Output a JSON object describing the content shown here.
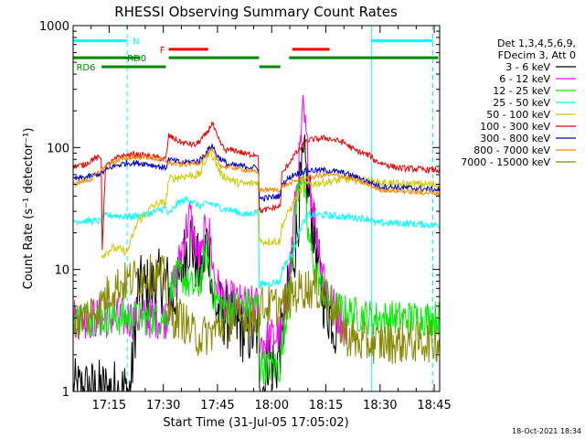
{
  "chart_data": {
    "type": "line",
    "title": "RHESSI Observing Summary Count Rates",
    "xlabel": "Start Time (31-Jul-05 17:05:02)",
    "ylabel": "Count Rate (s⁻¹ detector⁻¹)",
    "xlim": [
      1025.03,
      1126.5
    ],
    "ylim": [
      1,
      1000
    ],
    "yscale": "log",
    "x_unit": "minutes after 00:00 UT",
    "x_ticks": [
      {
        "value": 1035,
        "label": "17:15"
      },
      {
        "value": 1050,
        "label": "17:30"
      },
      {
        "value": 1065,
        "label": "17:45"
      },
      {
        "value": 1080,
        "label": "18:00"
      },
      {
        "value": 1095,
        "label": "18:15"
      },
      {
        "value": 1110,
        "label": "18:30"
      },
      {
        "value": 1125,
        "label": "18:45"
      }
    ],
    "y_ticks": [
      {
        "value": 1,
        "label": "1"
      },
      {
        "value": 10,
        "label": "10"
      },
      {
        "value": 100,
        "label": "100"
      },
      {
        "value": 1000,
        "label": "1000"
      }
    ],
    "legend_header": [
      "Det 1,3,4,5,6,9,",
      "FDecim 3, Att 0"
    ],
    "legend_placement": "right-outside",
    "flags": [
      {
        "label": "N",
        "color": "#00ffff",
        "segments": [
          [
            1025.03,
            1040
          ],
          [
            1107.6,
            1124.6
          ]
        ],
        "level": 750
      },
      {
        "label": "F",
        "color": "#ee0000",
        "segments": [
          [
            1051.5,
            1062.4
          ],
          [
            1085.7,
            1096.0
          ]
        ],
        "level": 640
      },
      {
        "label": "RD0",
        "color": "#008800",
        "segments": [
          [
            1025.03,
            1043.6
          ],
          [
            1051.5,
            1076.5
          ],
          [
            1084.8,
            1126.1
          ]
        ],
        "level": 545
      },
      {
        "label": "RD6",
        "color": "#008800",
        "segments": [
          [
            1032.9,
            1050.7
          ],
          [
            1076.6,
            1082.4
          ]
        ],
        "level": 460
      }
    ],
    "vlines": [
      {
        "x": 1025.03,
        "style": "solid",
        "color": "#00ffff"
      },
      {
        "x": 1040.0,
        "style": "dashed",
        "color": "#00ffff"
      },
      {
        "x": 1107.6,
        "style": "solid",
        "color": "#00ffff"
      },
      {
        "x": 1124.6,
        "style": "dashed",
        "color": "#00ffff"
      }
    ],
    "series": [
      {
        "name": "3 - 6 keV",
        "color": "#000000",
        "noise": 0.55,
        "points": [
          [
            1025.03,
            1
          ],
          [
            1040.9,
            1
          ],
          [
            1041.1,
            1.2
          ],
          [
            1043,
            7
          ],
          [
            1046,
            7
          ],
          [
            1049,
            8
          ],
          [
            1050.7,
            8
          ],
          [
            1051.5,
            7
          ],
          [
            1052.5,
            5
          ],
          [
            1054,
            7
          ],
          [
            1056,
            14
          ],
          [
            1057.5,
            18
          ],
          [
            1059,
            12
          ],
          [
            1060.5,
            9
          ],
          [
            1062,
            17
          ],
          [
            1063,
            12
          ],
          [
            1064,
            5
          ],
          [
            1066,
            4.5
          ],
          [
            1068,
            4
          ],
          [
            1070,
            3.5
          ],
          [
            1073,
            3
          ],
          [
            1076.3,
            3
          ],
          [
            1076.8,
            1.1
          ],
          [
            1078,
            1.1
          ],
          [
            1079,
            2
          ],
          [
            1081,
            1.5
          ],
          [
            1083,
            3
          ],
          [
            1085,
            8
          ],
          [
            1087,
            20
          ],
          [
            1088,
            50
          ],
          [
            1089,
            75
          ],
          [
            1090.5,
            40
          ],
          [
            1092,
            17
          ],
          [
            1093.5,
            8
          ],
          [
            1095,
            5
          ],
          [
            1097,
            4
          ],
          [
            1098,
            3
          ]
        ]
      },
      {
        "name": "6 - 12 keV",
        "color": "#ff00ff",
        "noise": 0.35,
        "points": [
          [
            1025.03,
            4
          ],
          [
            1050.7,
            4
          ],
          [
            1051.5,
            5
          ],
          [
            1052.5,
            7
          ],
          [
            1054,
            10
          ],
          [
            1056,
            20
          ],
          [
            1057.5,
            28
          ],
          [
            1059,
            14
          ],
          [
            1060.5,
            12
          ],
          [
            1062,
            25
          ],
          [
            1063,
            18
          ],
          [
            1064,
            9
          ],
          [
            1066,
            6
          ],
          [
            1068,
            5.5
          ],
          [
            1073,
            5
          ],
          [
            1076.3,
            5
          ],
          [
            1076.8,
            2.5
          ],
          [
            1083,
            3
          ],
          [
            1085,
            10
          ],
          [
            1087,
            50
          ],
          [
            1088,
            100
          ],
          [
            1088.7,
            200
          ],
          [
            1089.5,
            120
          ],
          [
            1091,
            40
          ],
          [
            1093,
            15
          ],
          [
            1095,
            8
          ],
          [
            1097,
            5
          ],
          [
            1099,
            4
          ],
          [
            1101,
            3
          ]
        ]
      },
      {
        "name": "12 - 25 keV",
        "color": "#00ee00",
        "noise": 0.3,
        "points": [
          [
            1025.03,
            4
          ],
          [
            1050.7,
            4
          ],
          [
            1051.5,
            5
          ],
          [
            1052.5,
            8
          ],
          [
            1055,
            9
          ],
          [
            1058,
            7
          ],
          [
            1060,
            7.5
          ],
          [
            1062,
            15
          ],
          [
            1063,
            9
          ],
          [
            1064,
            6
          ],
          [
            1066,
            5
          ],
          [
            1070,
            5
          ],
          [
            1076.3,
            5
          ],
          [
            1076.8,
            1.6
          ],
          [
            1081,
            1.6
          ],
          [
            1082.4,
            1.6
          ],
          [
            1083,
            2.5
          ],
          [
            1085,
            7
          ],
          [
            1086,
            15
          ],
          [
            1087,
            40
          ],
          [
            1088,
            65
          ],
          [
            1089,
            45
          ],
          [
            1090,
            20
          ],
          [
            1092,
            10
          ],
          [
            1094,
            7
          ],
          [
            1097,
            5
          ],
          [
            1100,
            4.5
          ],
          [
            1108,
            4
          ],
          [
            1126.5,
            4
          ]
        ]
      },
      {
        "name": "25 - 50 keV",
        "color": "#00ffff",
        "noise": 0.06,
        "points": [
          [
            1025.03,
            25
          ],
          [
            1032.8,
            25
          ],
          [
            1033.1,
            27
          ],
          [
            1036,
            28
          ],
          [
            1040,
            27
          ],
          [
            1045,
            28
          ],
          [
            1048,
            30
          ],
          [
            1050.7,
            32
          ],
          [
            1051.5,
            28
          ],
          [
            1054,
            35
          ],
          [
            1057,
            38
          ],
          [
            1060,
            33
          ],
          [
            1063,
            35
          ],
          [
            1066,
            32
          ],
          [
            1070,
            30
          ],
          [
            1073,
            28
          ],
          [
            1076.3,
            30
          ],
          [
            1076.6,
            7.5
          ],
          [
            1082.4,
            8
          ],
          [
            1082.8,
            10
          ],
          [
            1086,
            14
          ],
          [
            1088,
            22
          ],
          [
            1090,
            28
          ],
          [
            1094,
            28
          ],
          [
            1100,
            27
          ],
          [
            1107.6,
            26
          ],
          [
            1108.2,
            24
          ],
          [
            1115,
            24
          ],
          [
            1126.5,
            23
          ]
        ]
      },
      {
        "name": "50 - 100 keV",
        "color": "#cccc00",
        "noise": 0.07,
        "points": [
          [
            1032.9,
            13
          ],
          [
            1036,
            15
          ],
          [
            1040,
            14
          ],
          [
            1043,
            25
          ],
          [
            1045,
            28
          ],
          [
            1047,
            33
          ],
          [
            1049,
            35
          ],
          [
            1050.7,
            35
          ],
          [
            1051.5,
            55
          ],
          [
            1055,
            58
          ],
          [
            1060,
            60
          ],
          [
            1063,
            95
          ],
          [
            1066,
            60
          ],
          [
            1070,
            52
          ],
          [
            1073,
            50
          ],
          [
            1076.3,
            52
          ],
          [
            1076.6,
            17
          ],
          [
            1082.4,
            17
          ],
          [
            1082.8,
            23
          ],
          [
            1086,
            35
          ],
          [
            1088,
            45
          ],
          [
            1090,
            50
          ],
          [
            1095,
            52
          ],
          [
            1100,
            55
          ],
          [
            1107.6,
            53
          ],
          [
            1108,
            52
          ],
          [
            1115,
            50
          ],
          [
            1126.5,
            50
          ]
        ]
      },
      {
        "name": "100 - 300 keV",
        "color": "#ee0000",
        "noise": 0.05,
        "points": [
          [
            1025.03,
            70
          ],
          [
            1028,
            72
          ],
          [
            1031,
            82
          ],
          [
            1032.8,
            82
          ],
          [
            1033.1,
            15
          ],
          [
            1034,
            70
          ],
          [
            1038,
            85
          ],
          [
            1042,
            88
          ],
          [
            1046,
            85
          ],
          [
            1050.7,
            80
          ],
          [
            1051.5,
            125
          ],
          [
            1055,
            110
          ],
          [
            1059,
            105
          ],
          [
            1062,
            130
          ],
          [
            1063.5,
            160
          ],
          [
            1065,
            120
          ],
          [
            1067,
            95
          ],
          [
            1070,
            95
          ],
          [
            1073,
            88
          ],
          [
            1076.3,
            88
          ],
          [
            1076.6,
            30
          ],
          [
            1082.4,
            33
          ],
          [
            1082.8,
            60
          ],
          [
            1086,
            85
          ],
          [
            1090,
            115
          ],
          [
            1095,
            120
          ],
          [
            1100,
            110
          ],
          [
            1103,
            95
          ],
          [
            1107.6,
            85
          ],
          [
            1108,
            80
          ],
          [
            1110,
            75
          ],
          [
            1115,
            68
          ],
          [
            1126.5,
            65
          ]
        ]
      },
      {
        "name": "300 - 800 keV",
        "color": "#0000cc",
        "noise": 0.05,
        "points": [
          [
            1025.03,
            55
          ],
          [
            1030,
            58
          ],
          [
            1033,
            62
          ],
          [
            1036,
            70
          ],
          [
            1040,
            75
          ],
          [
            1045,
            74
          ],
          [
            1050.7,
            68
          ],
          [
            1051.5,
            80
          ],
          [
            1055,
            75
          ],
          [
            1060,
            78
          ],
          [
            1063.5,
            105
          ],
          [
            1065,
            85
          ],
          [
            1068,
            72
          ],
          [
            1073,
            70
          ],
          [
            1076.3,
            68
          ],
          [
            1076.6,
            38
          ],
          [
            1082.4,
            40
          ],
          [
            1082.8,
            50
          ],
          [
            1086,
            60
          ],
          [
            1090,
            65
          ],
          [
            1095,
            65
          ],
          [
            1100,
            62
          ],
          [
            1105,
            55
          ],
          [
            1110,
            48
          ],
          [
            1115,
            47
          ],
          [
            1126.5,
            45
          ]
        ]
      },
      {
        "name": "800 - 7000 keV",
        "color": "#ff8800",
        "noise": 0.04,
        "points": [
          [
            1025.03,
            50
          ],
          [
            1030,
            55
          ],
          [
            1035,
            75
          ],
          [
            1040,
            82
          ],
          [
            1045,
            84
          ],
          [
            1050.7,
            78
          ],
          [
            1051.5,
            75
          ],
          [
            1055,
            72
          ],
          [
            1060,
            75
          ],
          [
            1063.5,
            95
          ],
          [
            1066,
            70
          ],
          [
            1070,
            68
          ],
          [
            1076.3,
            62
          ],
          [
            1076.6,
            45
          ],
          [
            1082.4,
            45
          ],
          [
            1082.8,
            48
          ],
          [
            1088,
            55
          ],
          [
            1095,
            60
          ],
          [
            1100,
            58
          ],
          [
            1105,
            52
          ],
          [
            1110,
            45
          ],
          [
            1115,
            44
          ],
          [
            1126.5,
            42
          ]
        ]
      },
      {
        "name": "7000 - 15000 keV",
        "color": "#888800",
        "noise": 0.35,
        "points": [
          [
            1025.03,
            3.5
          ],
          [
            1030,
            4.5
          ],
          [
            1032.8,
            5
          ],
          [
            1033.1,
            5.5
          ],
          [
            1036,
            7
          ],
          [
            1040,
            8
          ],
          [
            1045,
            9
          ],
          [
            1049,
            9
          ],
          [
            1050.7,
            8.5
          ],
          [
            1051.5,
            4
          ],
          [
            1055,
            4
          ],
          [
            1058,
            3
          ],
          [
            1060,
            2.8
          ],
          [
            1063,
            3
          ],
          [
            1066,
            3.5
          ],
          [
            1070,
            4
          ],
          [
            1076.3,
            4
          ],
          [
            1076.6,
            5
          ],
          [
            1082.4,
            5
          ],
          [
            1082.8,
            5
          ],
          [
            1088,
            7
          ],
          [
            1092,
            7
          ],
          [
            1095,
            6
          ],
          [
            1098,
            4
          ],
          [
            1100,
            3
          ],
          [
            1104,
            2.5
          ],
          [
            1108,
            2.5
          ],
          [
            1115,
            2.5
          ],
          [
            1126.5,
            2.6
          ]
        ]
      }
    ]
  },
  "footer": {
    "date": "18-Oct-2021 18:34"
  }
}
